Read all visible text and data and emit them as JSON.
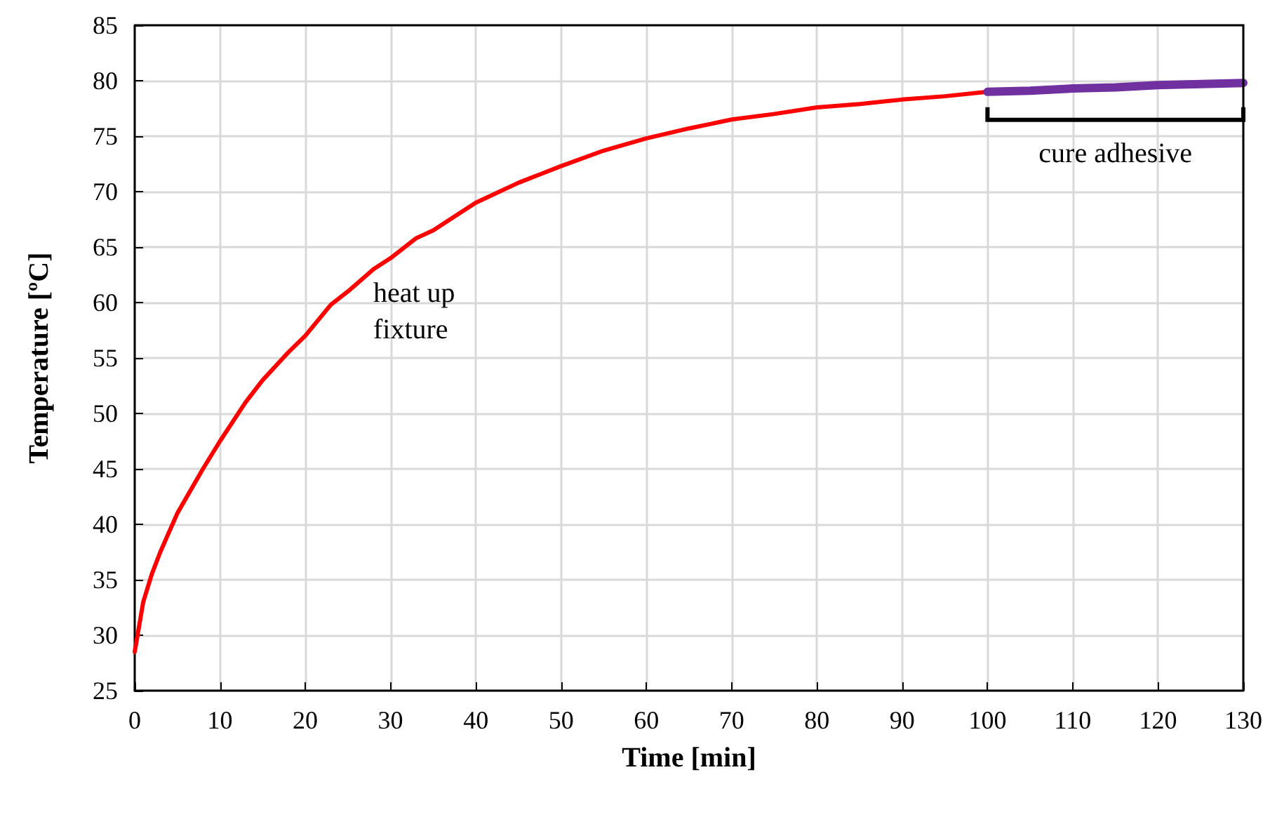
{
  "chart_data": {
    "type": "line",
    "xlabel": "Time [min]",
    "ylabel": "Temperature [ºC]",
    "xlim": [
      0,
      130
    ],
    "xticks": [
      0,
      10,
      20,
      30,
      40,
      50,
      60,
      70,
      80,
      90,
      100,
      110,
      120,
      130
    ],
    "ylim": [
      25,
      85
    ],
    "yticks": [
      25,
      30,
      35,
      40,
      45,
      50,
      55,
      60,
      65,
      70,
      75,
      80,
      85
    ],
    "grid": true,
    "marker": "none",
    "line_style": "solid",
    "series": [
      {
        "color": "#ff0000",
        "x": [
          0,
          1,
          2,
          3,
          5,
          8,
          10,
          13,
          15,
          18,
          20,
          23,
          25,
          28,
          30,
          33,
          35,
          38,
          40,
          45,
          50,
          55,
          60,
          65,
          70,
          75,
          80,
          85,
          90,
          95,
          100
        ],
        "values": [
          28.5,
          33,
          35.5,
          37.5,
          41,
          45,
          47.5,
          51,
          53,
          55.5,
          57,
          59.8,
          61,
          63,
          64,
          65.8,
          66.5,
          68,
          69,
          70.8,
          72.3,
          73.7,
          74.8,
          75.7,
          76.5,
          77,
          77.6,
          77.9,
          78.3,
          78.6,
          79
        ]
      },
      {
        "color": "#7030a0",
        "x": [
          100,
          105,
          110,
          115,
          120,
          125,
          130
        ],
        "values": [
          79,
          79.1,
          79.3,
          79.4,
          79.6,
          79.7,
          79.8
        ]
      }
    ],
    "annotations": [
      "heat up\nfixture",
      "cure adhesive"
    ]
  }
}
